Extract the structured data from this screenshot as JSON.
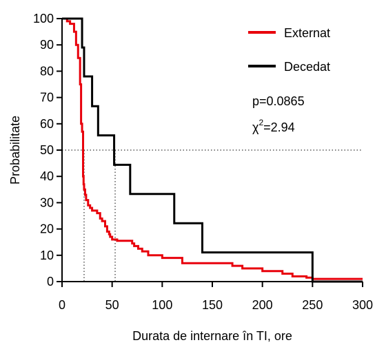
{
  "chart_data": {
    "type": "line",
    "step": true,
    "xlabel": "Durata de internare în TI, ore",
    "ylabel": "Probabilitate",
    "xlim": [
      0,
      300
    ],
    "ylim": [
      0,
      100
    ],
    "xticks": [
      0,
      50,
      100,
      150,
      200,
      250,
      300
    ],
    "yticks": [
      0,
      10,
      20,
      30,
      40,
      50,
      60,
      70,
      80,
      90,
      100
    ],
    "grid": false,
    "legend_position": "top-right",
    "series": [
      {
        "name": "Externat",
        "color": "#e8000b",
        "x": [
          0,
          5,
          8,
          12,
          14,
          16,
          18,
          19,
          20,
          21,
          21.5,
          22,
          23,
          24,
          26,
          28,
          30,
          35,
          38,
          40,
          43,
          45,
          47,
          48,
          50,
          55,
          70,
          72,
          76,
          80,
          86,
          100,
          120,
          170,
          180,
          200,
          220,
          230,
          244,
          250
        ],
        "y": [
          100,
          99,
          98,
          95,
          90,
          85,
          75,
          60,
          57,
          40,
          37,
          35,
          33,
          31,
          29,
          28,
          27,
          26,
          24,
          23,
          21,
          19,
          18,
          17,
          16,
          15.5,
          14.5,
          13.5,
          12.5,
          11.5,
          10,
          9,
          7,
          6,
          5,
          4,
          3,
          2,
          1.5,
          1
        ]
      },
      {
        "name": "Decedat",
        "color": "#000000",
        "x": [
          0,
          20,
          22,
          30,
          36,
          52,
          68,
          112,
          140,
          250
        ],
        "y": [
          100,
          89,
          78,
          66.7,
          55.6,
          44.4,
          33.3,
          22.2,
          11.1,
          0
        ]
      }
    ],
    "reference_lines": {
      "y": 50,
      "x": [
        22,
        53
      ]
    },
    "annotations": [
      {
        "text": "p=0.0865"
      },
      {
        "prefix": "χ",
        "superscript": "2",
        "suffix": "=2.94"
      }
    ]
  }
}
